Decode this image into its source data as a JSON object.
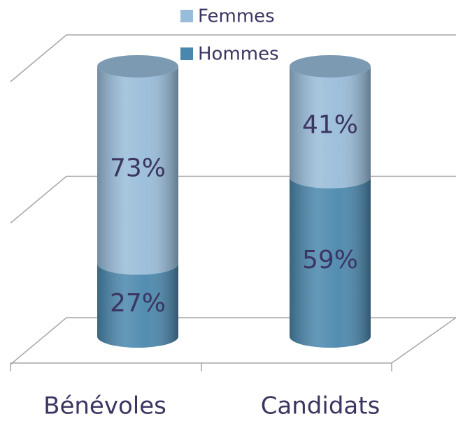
{
  "chart_data": {
    "type": "stacked-bar-3d",
    "categories": [
      "Bénévoles",
      "Candidats"
    ],
    "series": [
      {
        "name": "Hommes",
        "color": "#4a87ad",
        "values": [
          27,
          59
        ],
        "value_labels": [
          "27%",
          "59%"
        ]
      },
      {
        "name": "Femmes",
        "color": "#98bcd9",
        "values": [
          73,
          41
        ],
        "value_labels": [
          "73%",
          "41%"
        ]
      }
    ],
    "ylim": [
      0,
      100
    ],
    "yticks": [
      0,
      50,
      100
    ],
    "grid": true,
    "legend": "top"
  }
}
